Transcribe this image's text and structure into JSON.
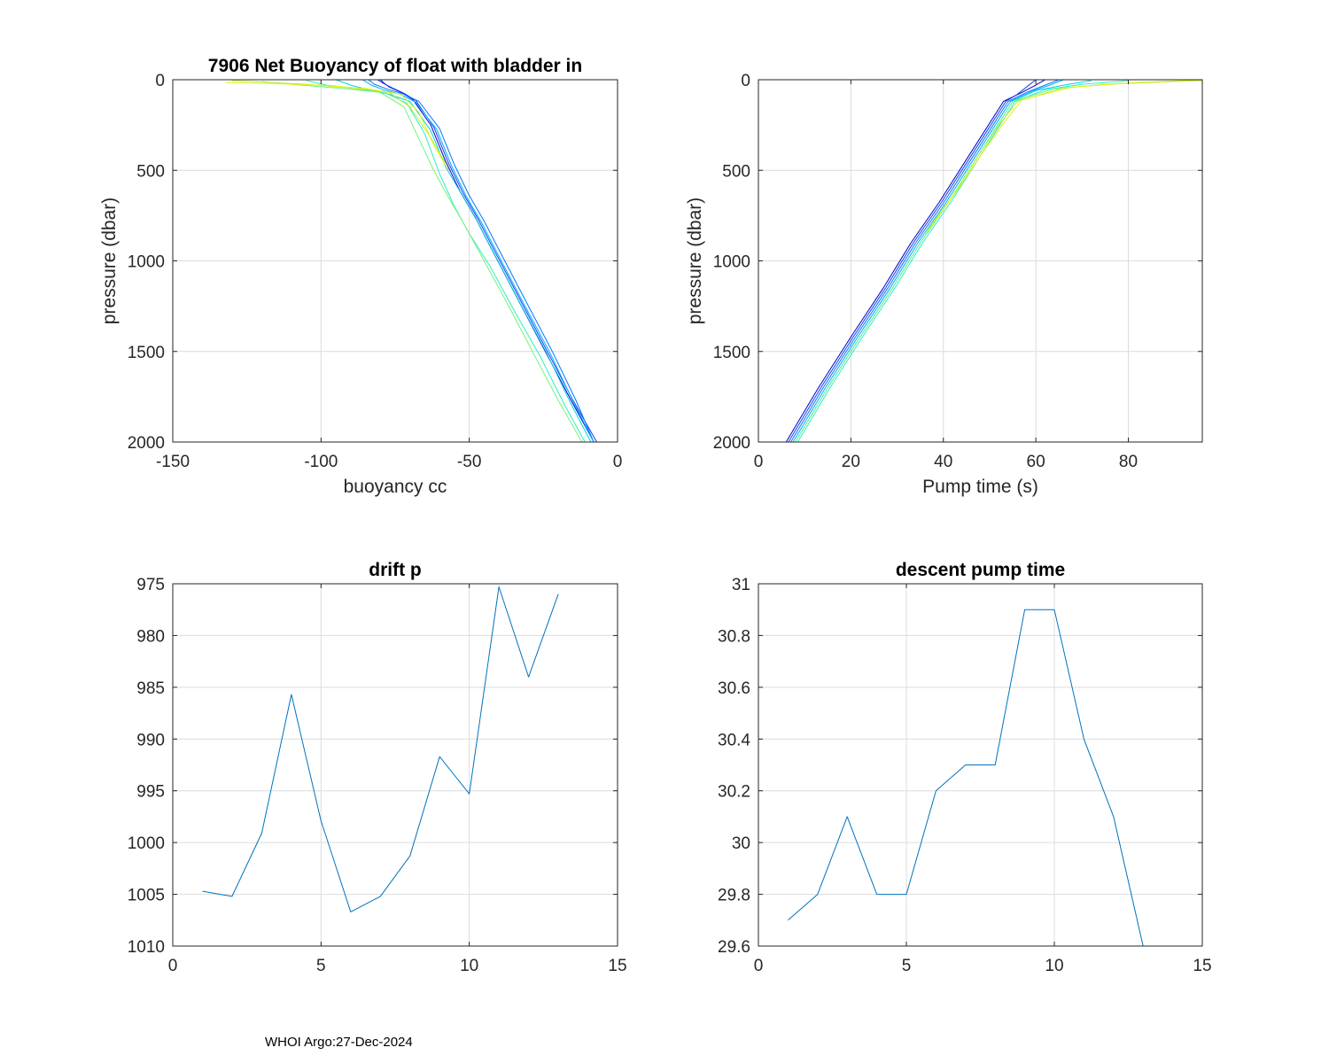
{
  "footer": "WHOI Argo:27-Dec-2024",
  "chart_data": [
    {
      "id": "buoyancy",
      "type": "line",
      "title": "7906 Net Buoyancy of float with bladder in",
      "xlabel": "buoyancy cc",
      "ylabel": "pressure (dbar)",
      "xlim": [
        -150,
        0
      ],
      "ylim": [
        0,
        2000
      ],
      "y_reversed": true,
      "grid": true,
      "xticks": [
        -150,
        -100,
        -50,
        0
      ],
      "yticks": [
        0,
        500,
        1000,
        1500,
        2000
      ],
      "colors": [
        "#0000c8",
        "#1440f0",
        "#0078ff",
        "#00aaff",
        "#00d2e6",
        "#28f0c8",
        "#78f078",
        "#b4f03c",
        "#e1f014"
      ],
      "series": [
        {
          "color": "#0000c8",
          "x": [
            -80,
            -79,
            -77,
            -73,
            -69,
            -63,
            -58,
            -53,
            -48,
            -42,
            -34,
            -25,
            -16,
            -8
          ],
          "y": [
            0,
            15,
            40,
            70,
            110,
            250,
            450,
            620,
            760,
            950,
            1200,
            1480,
            1760,
            2000
          ]
        },
        {
          "color": "#1440f0",
          "x": [
            -81,
            -79,
            -76,
            -72,
            -68,
            -62,
            -57,
            -52,
            -47,
            -41,
            -33,
            -24,
            -15,
            -7
          ],
          "y": [
            0,
            20,
            45,
            75,
            115,
            260,
            460,
            630,
            770,
            960,
            1210,
            1490,
            1770,
            2000
          ]
        },
        {
          "color": "#0078ff",
          "x": [
            -84,
            -82,
            -78,
            -72,
            -67,
            -60,
            -55,
            -50,
            -45,
            -39,
            -31,
            -22,
            -14,
            -8
          ],
          "y": [
            0,
            25,
            50,
            80,
            120,
            270,
            470,
            640,
            780,
            970,
            1220,
            1500,
            1770,
            2000
          ]
        },
        {
          "color": "#00aaff",
          "x": [
            -86,
            -83,
            -79,
            -73,
            -68,
            -61,
            -56,
            -51,
            -46,
            -40,
            -32,
            -23,
            -15,
            -8
          ],
          "y": [
            0,
            30,
            55,
            82,
            125,
            275,
            475,
            645,
            785,
            975,
            1225,
            1500,
            1775,
            2000
          ]
        },
        {
          "color": "#00d2e6",
          "x": [
            -95,
            -90,
            -84,
            -77,
            -70,
            -63,
            -58,
            -52,
            -47,
            -41,
            -33,
            -24,
            -16,
            -9
          ],
          "y": [
            0,
            30,
            55,
            80,
            120,
            280,
            480,
            650,
            790,
            980,
            1230,
            1505,
            1780,
            2000
          ]
        },
        {
          "color": "#28f0c8",
          "x": [
            -105,
            -98,
            -88,
            -78,
            -71,
            -65,
            -60,
            -55,
            -50,
            -43,
            -35,
            -26,
            -18,
            -11
          ],
          "y": [
            5,
            30,
            50,
            75,
            130,
            300,
            520,
            700,
            850,
            1030,
            1270,
            1530,
            1790,
            2000
          ]
        },
        {
          "color": "#78f078",
          "x": [
            -120,
            -110,
            -95,
            -80,
            -72,
            -66,
            -62,
            -57,
            -52,
            -46,
            -38,
            -29,
            -20,
            -12
          ],
          "y": [
            10,
            25,
            45,
            70,
            150,
            360,
            500,
            650,
            790,
            970,
            1210,
            1490,
            1770,
            2000
          ]
        },
        {
          "color": "#b4f03c",
          "x": [
            -130,
            -120,
            -105,
            -90,
            -77,
            -70,
            -63,
            -58
          ],
          "y": [
            5,
            12,
            25,
            45,
            70,
            150,
            320,
            460
          ]
        },
        {
          "color": "#e1f014",
          "x": [
            -132,
            -118,
            -100,
            -84,
            -73,
            -67,
            -62,
            -57
          ],
          "y": [
            15,
            20,
            30,
            50,
            80,
            180,
            360,
            500
          ]
        }
      ]
    },
    {
      "id": "pumptime",
      "type": "line",
      "title": "",
      "xlabel": "Pump time (s)",
      "ylabel": "pressure (dbar)",
      "xlim": [
        0,
        96
      ],
      "ylim": [
        0,
        2000
      ],
      "y_reversed": true,
      "grid": true,
      "xticks": [
        0,
        20,
        40,
        60,
        80
      ],
      "yticks": [
        0,
        500,
        1000,
        1500,
        2000
      ],
      "series": [
        {
          "color": "#0000c8",
          "x": [
            6,
            13,
            20,
            27,
            33,
            39,
            44,
            49,
            53,
            57,
            60,
            62
          ],
          "y": [
            2000,
            1700,
            1420,
            1150,
            900,
            680,
            480,
            280,
            120,
            70,
            30,
            0
          ]
        },
        {
          "color": "#1440f0",
          "x": [
            6.5,
            13.5,
            20.5,
            27.5,
            33.5,
            39.5,
            44.5,
            49.5,
            53.5,
            56,
            58,
            60
          ],
          "y": [
            2000,
            1700,
            1420,
            1150,
            900,
            680,
            480,
            280,
            120,
            80,
            40,
            0
          ]
        },
        {
          "color": "#0078ff",
          "x": [
            7,
            14,
            21,
            28,
            34,
            40,
            45,
            50,
            54,
            58,
            62,
            65
          ],
          "y": [
            2000,
            1700,
            1420,
            1150,
            900,
            680,
            480,
            280,
            120,
            70,
            30,
            0
          ]
        },
        {
          "color": "#00aaff",
          "x": [
            7.5,
            14.5,
            21.5,
            28.5,
            34.5,
            40.5,
            45.5,
            50.5,
            54.5,
            59,
            63,
            66
          ],
          "y": [
            2000,
            1700,
            1420,
            1150,
            900,
            680,
            480,
            280,
            120,
            65,
            30,
            0
          ]
        },
        {
          "color": "#00d2e6",
          "x": [
            8,
            15,
            22,
            29,
            35,
            41,
            46,
            51,
            55,
            60,
            66,
            72
          ],
          "y": [
            2000,
            1700,
            1420,
            1150,
            900,
            680,
            480,
            280,
            120,
            60,
            30,
            5
          ]
        },
        {
          "color": "#28f0c8",
          "x": [
            8.5,
            15.5,
            22.5,
            29.5,
            35.5,
            41.5,
            46.5,
            51.5,
            55.5,
            62,
            70,
            80
          ],
          "y": [
            2000,
            1700,
            1420,
            1150,
            900,
            680,
            480,
            280,
            120,
            55,
            25,
            5
          ]
        },
        {
          "color": "#78f078",
          "x": [
            8,
            15,
            22,
            29,
            35,
            41,
            46,
            51,
            55,
            64,
            75,
            90
          ],
          "y": [
            2000,
            1700,
            1420,
            1150,
            900,
            680,
            480,
            280,
            120,
            50,
            25,
            10
          ]
        },
        {
          "color": "#b4f03c",
          "x": [
            36,
            42,
            47,
            52,
            56,
            66,
            78,
            96
          ],
          "y": [
            850,
            640,
            440,
            250,
            120,
            45,
            20,
            5
          ]
        },
        {
          "color": "#e1f014",
          "x": [
            37,
            43,
            48,
            53,
            57,
            68,
            82,
            96
          ],
          "y": [
            820,
            610,
            420,
            240,
            110,
            40,
            15,
            0
          ]
        }
      ]
    },
    {
      "id": "driftp",
      "type": "line",
      "title": "drift p",
      "xlabel": "",
      "ylabel": "",
      "xlim": [
        0,
        15
      ],
      "ylim": [
        975,
        1010
      ],
      "y_reversed": true,
      "grid": true,
      "xticks": [
        0,
        5,
        10,
        15
      ],
      "yticks": [
        975,
        980,
        985,
        990,
        995,
        1000,
        1005,
        1010
      ],
      "series": [
        {
          "color": "#0072bd",
          "x": [
            1,
            2,
            3,
            4,
            5,
            6,
            7,
            8,
            9,
            10,
            11,
            12,
            13
          ],
          "y": [
            1004.7,
            1005.2,
            999.1,
            985.7,
            997.9,
            1006.7,
            1005.2,
            1001.3,
            991.7,
            995.3,
            975.3,
            984.0,
            976.0
          ]
        }
      ]
    },
    {
      "id": "descentpump",
      "type": "line",
      "title": "descent pump time",
      "xlabel": "",
      "ylabel": "",
      "xlim": [
        0,
        15
      ],
      "ylim": [
        29.6,
        31
      ],
      "y_reversed": false,
      "grid": true,
      "xticks": [
        0,
        5,
        10,
        15
      ],
      "yticks": [
        29.6,
        29.8,
        30,
        30.2,
        30.4,
        30.6,
        30.8,
        31
      ],
      "series": [
        {
          "color": "#0072bd",
          "x": [
            1,
            2,
            3,
            4,
            5,
            6,
            7,
            8,
            9,
            10,
            11,
            12,
            13
          ],
          "y": [
            29.7,
            29.8,
            30.1,
            29.8,
            29.8,
            30.2,
            30.3,
            30.3,
            30.9,
            30.9,
            30.4,
            30.1,
            29.6
          ]
        }
      ]
    }
  ]
}
